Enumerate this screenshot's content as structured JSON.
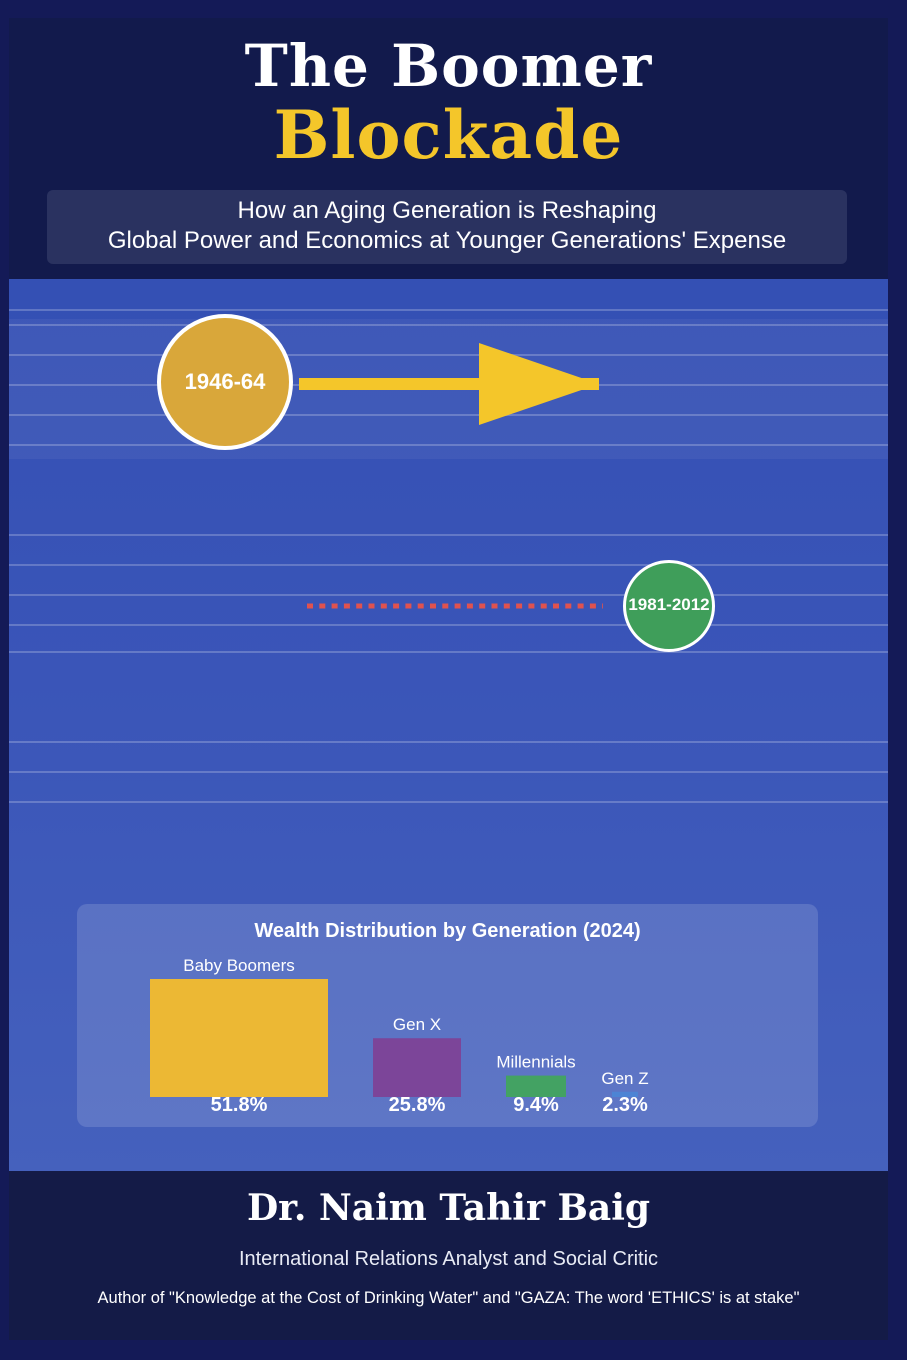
{
  "title": {
    "line1": "The Boomer",
    "line2": "Blockade",
    "color_line1": "#ffffff",
    "color_line2": "#f4c62a"
  },
  "subtitle": {
    "line1": "How an Aging Generation is Reshaping",
    "line2": "Global Power and Economics at Younger Generations' Expense"
  },
  "timeline": {
    "boomer_years": "1946-64",
    "millennial_years": "1981-2012",
    "boomer_color": "#d9a73a",
    "millennial_color": "#3f9e5a",
    "arrow_color": "#f4c62a",
    "dotted_line_color": "#e0524f"
  },
  "chart_data": {
    "type": "bar",
    "title": "Wealth Distribution by Generation (2024)",
    "categories": [
      "Baby Boomers",
      "Gen X",
      "Millennials",
      "Gen Z"
    ],
    "values": [
      51.8,
      25.8,
      9.4,
      2.3
    ],
    "value_labels": [
      "51.8%",
      "25.8%",
      "9.4%",
      "2.3%"
    ],
    "colors": [
      "#ecb834",
      "#7c4599",
      "#43a263",
      "#3f8fe0"
    ],
    "unit": "%",
    "xlabel": "",
    "ylabel": "",
    "ylim": [
      0,
      51.8
    ]
  },
  "footer": {
    "author": "Dr. Naim Tahir Baig",
    "role": "International Relations Analyst and Social Critic",
    "books": "Author of \"Knowledge at the Cost of Drinking Water\" and \"GAZA: The word 'ETHICS' is at stake\""
  }
}
